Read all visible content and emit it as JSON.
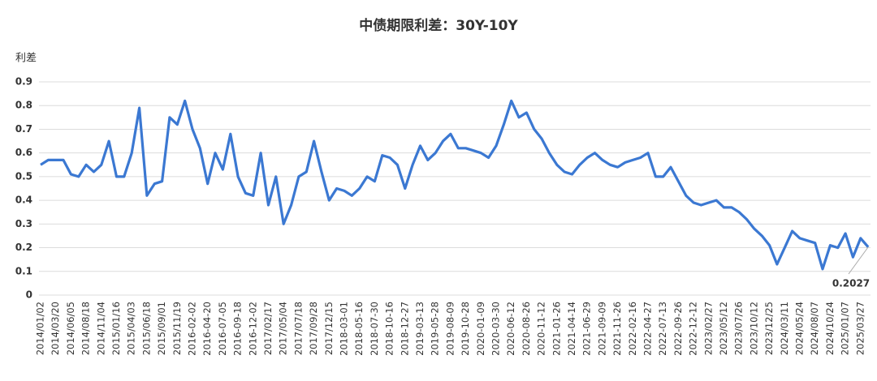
{
  "chart_data": {
    "type": "line",
    "title": "中债期限利差：30Y-10Y",
    "y_label": "利差",
    "categories": [
      "2014/01/02",
      null,
      "2014/03/20",
      null,
      "2014/06/05",
      null,
      "2014/08/18",
      null,
      "2014/11/04",
      null,
      "2015/01/16",
      null,
      "2015/04/03",
      null,
      "2015/06/18",
      null,
      "2015/09/01",
      null,
      "2015/11/19",
      null,
      "2016-02-02",
      null,
      "2016-04-20",
      null,
      "2016-07-05",
      null,
      "2016-09-18",
      null,
      "2016-12-02",
      null,
      "2017/02/17",
      null,
      "2017/05/04",
      null,
      "2017/07/18",
      null,
      "2017/09/28",
      null,
      "2017/12/15",
      null,
      "2018-03-01",
      null,
      "2018-05-16",
      null,
      "2018-07-30",
      null,
      "2018-10-16",
      null,
      "2018-12-27",
      null,
      "2019-03-13",
      null,
      "2019-05-28",
      null,
      "2019-08-09",
      null,
      "2019-10-28",
      null,
      "2020-01-09",
      null,
      "2020-03-30",
      null,
      "2020-06-12",
      null,
      "2020-08-26",
      null,
      "2020-11-12",
      null,
      "2021-01-26",
      null,
      "2021-04-14",
      null,
      "2021-06-29",
      null,
      "2021-09-09",
      null,
      "2021-11-26",
      null,
      "2022-02-16",
      null,
      "2022-04-27",
      null,
      "2022-07-13",
      null,
      "2022-09-26",
      null,
      "2022-12-12",
      null,
      "2023/02/27",
      null,
      "2023/05/12",
      null,
      "2023/07/26",
      null,
      "2023/10/12",
      null,
      "2023/12/25",
      null,
      "2024/03/11",
      null,
      "2024/05/24",
      null,
      "2024/08/07",
      null,
      "2024/10/24",
      null,
      "2025/01/07",
      null,
      "2025/03/27",
      null
    ],
    "series": [
      {
        "name": "利差",
        "color": "#3b78d2",
        "values": [
          0.55,
          0.57,
          0.57,
          0.57,
          0.51,
          0.5,
          0.55,
          0.52,
          0.55,
          0.65,
          0.5,
          0.5,
          0.6,
          0.79,
          0.42,
          0.47,
          0.48,
          0.75,
          0.72,
          0.82,
          0.7,
          0.62,
          0.47,
          0.6,
          0.53,
          0.68,
          0.5,
          0.43,
          0.42,
          0.6,
          0.38,
          0.5,
          0.3,
          0.38,
          0.5,
          0.52,
          0.65,
          0.52,
          0.4,
          0.45,
          0.44,
          0.42,
          0.45,
          0.5,
          0.48,
          0.59,
          0.58,
          0.55,
          0.45,
          0.55,
          0.63,
          0.57,
          0.6,
          0.65,
          0.68,
          0.62,
          0.62,
          0.61,
          0.6,
          0.58,
          0.63,
          0.72,
          0.82,
          0.75,
          0.77,
          0.7,
          0.66,
          0.6,
          0.55,
          0.52,
          0.51,
          0.55,
          0.58,
          0.6,
          0.57,
          0.55,
          0.54,
          0.56,
          0.57,
          0.58,
          0.6,
          0.5,
          0.5,
          0.54,
          0.48,
          0.42,
          0.39,
          0.38,
          0.39,
          0.4,
          0.37,
          0.37,
          0.35,
          0.32,
          0.28,
          0.25,
          0.21,
          0.13,
          0.2,
          0.27,
          0.24,
          0.23,
          0.22,
          0.11,
          0.21,
          0.2,
          0.26,
          0.16,
          0.24,
          0.2027
        ]
      }
    ],
    "ylim": [
      0,
      0.9
    ],
    "yticks": [
      0,
      0.1,
      0.2,
      0.3,
      0.4,
      0.5,
      0.6,
      0.7,
      0.8,
      0.9
    ],
    "grid": true
  }
}
